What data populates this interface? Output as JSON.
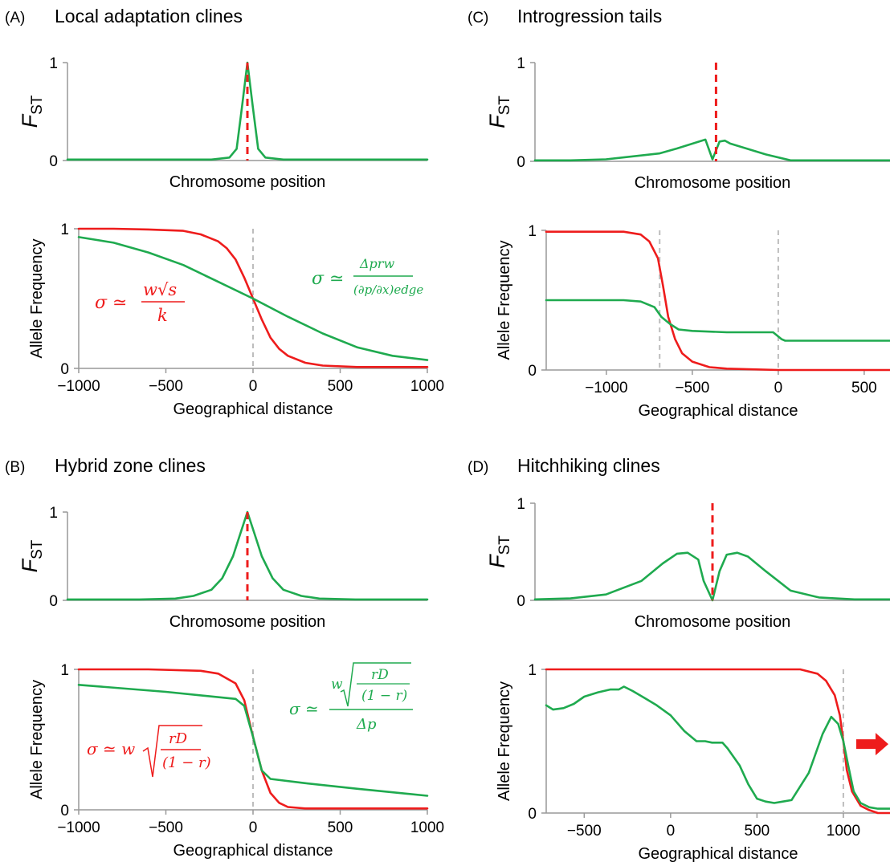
{
  "panels": {
    "A": {
      "tag": "(A)",
      "title": "Local adaptation clines"
    },
    "B": {
      "tag": "(B)",
      "title": "Hybrid zone clines"
    },
    "C": {
      "tag": "(C)",
      "title": "Introgression tails"
    },
    "D": {
      "tag": "(D)",
      "title": "Hitchhiking clines"
    }
  },
  "labels": {
    "fst_main": "F",
    "fst_sub": "ST",
    "chromosome": "Chromosome position",
    "allele": "Allele Frequency",
    "geo": "Geographical distance"
  },
  "formulas": {
    "A_red": {
      "lhs": "σ ≃",
      "num": "w√s",
      "den": "k"
    },
    "A_green": {
      "lhs": "σ ≃",
      "num": "Δprw",
      "den": "(∂p/∂x)edge"
    },
    "B_red": {
      "lhs": "σ ≃ w",
      "num": "rD",
      "den": "(1 − r)"
    },
    "B_green": {
      "lhs": "σ ≃",
      "num_w": "w",
      "num": "rD",
      "numden": "(1 − r)",
      "den": "Δp"
    }
  },
  "colors": {
    "red": "#ee1c1c",
    "green": "#1faa4f",
    "gray": "#bdbdbd",
    "axis": "#999999"
  },
  "chart_data": [
    {
      "id": "A_fst",
      "type": "line",
      "title": "Local adaptation clines",
      "xlabel": "Chromosome position",
      "ylabel": "FST",
      "ylim": [
        0,
        1
      ],
      "yticks": [
        0,
        1
      ],
      "series": [
        {
          "color": "green",
          "x": [
            0,
            0.3,
            0.4,
            0.45,
            0.47,
            0.485,
            0.5,
            0.515,
            0.53,
            0.55,
            0.6,
            0.7,
            1
          ],
          "values": [
            0.01,
            0.01,
            0.01,
            0.03,
            0.12,
            0.55,
            1.0,
            0.55,
            0.12,
            0.03,
            0.01,
            0.01,
            0.01
          ]
        }
      ],
      "marker_x": 0.5
    },
    {
      "id": "A_allele",
      "type": "line",
      "xlabel": "Geographical distance",
      "ylabel": "Allele Frequency",
      "xlim": [
        -1000,
        1000
      ],
      "ylim": [
        0,
        1
      ],
      "xticks": [
        -1000,
        -500,
        0,
        500,
        1000
      ],
      "yticks": [
        0,
        1
      ],
      "series": [
        {
          "color": "red",
          "x": [
            -1000,
            -800,
            -600,
            -400,
            -300,
            -200,
            -150,
            -100,
            -50,
            0,
            50,
            100,
            150,
            200,
            300,
            400,
            600,
            800,
            1000
          ],
          "values": [
            1.0,
            1.0,
            0.995,
            0.985,
            0.96,
            0.91,
            0.86,
            0.78,
            0.65,
            0.5,
            0.35,
            0.22,
            0.14,
            0.09,
            0.04,
            0.02,
            0.01,
            0.01,
            0.01
          ]
        },
        {
          "color": "green",
          "x": [
            -1000,
            -800,
            -600,
            -400,
            -200,
            0,
            200,
            400,
            600,
            800,
            1000
          ],
          "values": [
            0.94,
            0.9,
            0.83,
            0.74,
            0.62,
            0.5,
            0.37,
            0.25,
            0.15,
            0.09,
            0.06
          ]
        }
      ],
      "vline_x": 0
    },
    {
      "id": "B_fst",
      "type": "line",
      "title": "Hybrid zone clines",
      "xlabel": "Chromosome position",
      "ylabel": "FST",
      "ylim": [
        0,
        1
      ],
      "yticks": [
        0,
        1
      ],
      "series": [
        {
          "color": "green",
          "x": [
            0,
            0.2,
            0.3,
            0.35,
            0.4,
            0.43,
            0.46,
            0.48,
            0.5,
            0.52,
            0.54,
            0.57,
            0.6,
            0.65,
            0.7,
            0.8,
            1
          ],
          "values": [
            0.01,
            0.01,
            0.02,
            0.05,
            0.12,
            0.25,
            0.5,
            0.75,
            1.0,
            0.75,
            0.5,
            0.25,
            0.12,
            0.05,
            0.02,
            0.01,
            0.01
          ]
        }
      ],
      "marker_x": 0.5
    },
    {
      "id": "B_allele",
      "type": "line",
      "xlabel": "Geographical distance",
      "ylabel": "Allele Frequency",
      "xlim": [
        -1000,
        1000
      ],
      "ylim": [
        0,
        1
      ],
      "xticks": [
        -1000,
        -500,
        0,
        500,
        1000
      ],
      "yticks": [
        0,
        1
      ],
      "series": [
        {
          "color": "red",
          "x": [
            -1000,
            -600,
            -300,
            -200,
            -100,
            -50,
            0,
            50,
            100,
            150,
            200,
            300,
            500,
            1000
          ],
          "values": [
            1.0,
            1.0,
            0.99,
            0.97,
            0.9,
            0.78,
            0.52,
            0.28,
            0.12,
            0.05,
            0.02,
            0.01,
            0.01,
            0.01
          ]
        },
        {
          "color": "green",
          "x": [
            -1000,
            -500,
            -100,
            -50,
            0,
            50,
            100,
            300,
            600,
            1000
          ],
          "values": [
            0.89,
            0.84,
            0.79,
            0.74,
            0.52,
            0.28,
            0.22,
            0.19,
            0.15,
            0.1
          ]
        }
      ],
      "vline_x": 0
    },
    {
      "id": "C_fst",
      "type": "line",
      "title": "Introgression tails",
      "xlabel": "Chromosome position",
      "ylabel": "FST",
      "ylim": [
        0,
        1
      ],
      "yticks": [
        0,
        1
      ],
      "series": [
        {
          "color": "green",
          "x": [
            0,
            0.1,
            0.2,
            0.35,
            0.4,
            0.48,
            0.5,
            0.52,
            0.535,
            0.55,
            0.65,
            0.72,
            0.8,
            1
          ],
          "values": [
            0.01,
            0.01,
            0.02,
            0.08,
            0.13,
            0.22,
            0.02,
            0.2,
            0.21,
            0.18,
            0.07,
            0.01,
            0.01,
            0.01
          ]
        }
      ],
      "marker_x": 0.51
    },
    {
      "id": "C_allele",
      "type": "line",
      "xlabel": "Geographical distance",
      "ylabel": "Allele Frequency",
      "xlim": [
        -1350,
        650
      ],
      "ylim": [
        0,
        1
      ],
      "xticks": [
        -1000,
        -500,
        0,
        500
      ],
      "yticks": [
        0,
        1
      ],
      "series": [
        {
          "color": "red",
          "x": [
            -1350,
            -900,
            -800,
            -750,
            -700,
            -670,
            -640,
            -600,
            -560,
            -500,
            -400,
            -300,
            0,
            650
          ],
          "values": [
            0.99,
            0.99,
            0.97,
            0.92,
            0.8,
            0.6,
            0.38,
            0.22,
            0.12,
            0.06,
            0.02,
            0.01,
            0.0,
            0.0
          ]
        },
        {
          "color": "green",
          "x": [
            -1350,
            -900,
            -800,
            -720,
            -680,
            -630,
            -580,
            -500,
            -300,
            -30,
            20,
            40,
            650
          ],
          "values": [
            0.5,
            0.5,
            0.49,
            0.45,
            0.38,
            0.33,
            0.29,
            0.28,
            0.27,
            0.27,
            0.22,
            0.21,
            0.21
          ]
        }
      ],
      "vline_x": [
        -690,
        0
      ]
    },
    {
      "id": "D_fst",
      "type": "line",
      "title": "Hitchhiking clines",
      "xlabel": "Chromosome position",
      "ylabel": "FST",
      "ylim": [
        0,
        1
      ],
      "yticks": [
        0,
        1
      ],
      "series": [
        {
          "color": "green",
          "x": [
            0,
            0.1,
            0.2,
            0.3,
            0.36,
            0.4,
            0.43,
            0.46,
            0.475,
            0.5,
            0.52,
            0.54,
            0.57,
            0.6,
            0.65,
            0.72,
            0.8,
            0.9,
            1
          ],
          "values": [
            0.01,
            0.02,
            0.06,
            0.2,
            0.38,
            0.48,
            0.49,
            0.42,
            0.2,
            0.0,
            0.3,
            0.47,
            0.49,
            0.45,
            0.3,
            0.1,
            0.03,
            0.01,
            0.01
          ]
        }
      ],
      "marker_x": 0.5
    },
    {
      "id": "D_allele",
      "type": "line",
      "xlabel": "Geographical distance",
      "ylabel": "Allele Frequency",
      "xlim": [
        -720,
        1270
      ],
      "ylim": [
        0,
        1
      ],
      "xticks": [
        -500,
        0,
        500,
        1000
      ],
      "yticks": [
        0,
        1
      ],
      "series": [
        {
          "color": "red",
          "x": [
            -720,
            500,
            750,
            850,
            900,
            950,
            980,
            1000,
            1020,
            1050,
            1100,
            1150,
            1200,
            1270
          ],
          "values": [
            1.0,
            1.0,
            1.0,
            0.97,
            0.92,
            0.82,
            0.68,
            0.5,
            0.3,
            0.15,
            0.05,
            0.02,
            0.0,
            0.0
          ]
        },
        {
          "color": "green",
          "x": [
            -720,
            -680,
            -620,
            -560,
            -500,
            -420,
            -350,
            -300,
            -270,
            -220,
            -150,
            -80,
            0,
            80,
            150,
            200,
            240,
            300,
            330,
            400,
            450,
            500,
            550,
            600,
            650,
            700,
            800,
            880,
            930,
            970,
            1000,
            1030,
            1060,
            1100,
            1150,
            1200,
            1270
          ],
          "values": [
            0.75,
            0.72,
            0.73,
            0.76,
            0.81,
            0.84,
            0.86,
            0.86,
            0.88,
            0.85,
            0.8,
            0.75,
            0.68,
            0.57,
            0.5,
            0.5,
            0.49,
            0.49,
            0.45,
            0.33,
            0.2,
            0.1,
            0.08,
            0.07,
            0.08,
            0.09,
            0.28,
            0.55,
            0.67,
            0.62,
            0.5,
            0.32,
            0.15,
            0.07,
            0.04,
            0.03,
            0.03
          ]
        }
      ],
      "vline_x": 1000,
      "arrow": "right"
    }
  ]
}
